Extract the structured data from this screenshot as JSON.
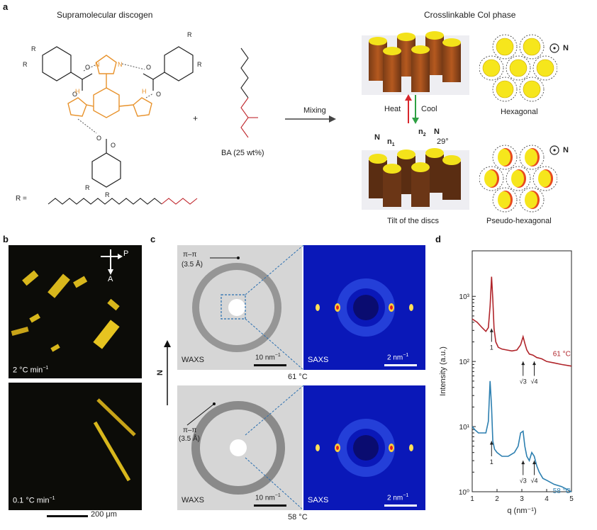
{
  "panels": {
    "a": {
      "letter": "a",
      "title_left": "Supramolecular discogen",
      "title_right": "Crosslinkable Col phase",
      "plus": "+",
      "ba_label": "BA (25 wt%)",
      "mixing": "Mixing",
      "heat": "Heat",
      "cool": "Cool",
      "hexagonal": "Hexagonal",
      "pseudo_hexagonal": "Pseudo-hexagonal",
      "tilt_label": "Tilt of the discs",
      "r_def": "R =",
      "director_n": "N",
      "n1": "n",
      "n1_sub": "1",
      "n2": "n",
      "n2_sub": "2",
      "tilt_angle": "29°",
      "r_letter": "R",
      "atom_o": "O",
      "atom_h": "H",
      "atom_n": "N"
    },
    "b": {
      "letter": "b",
      "cap_top": "2 °C min",
      "cap_bottom": "0.1 °C min",
      "superscript": "−1",
      "polarizer": "P",
      "analyzer": "A",
      "scale": "200 μm"
    },
    "c": {
      "letter": "c",
      "n_axis": "N",
      "pi_pi": "π–π",
      "spacing": "(3.5 Å)",
      "waxs": "WAXS",
      "saxs": "SAXS",
      "scale_waxs": "10 nm",
      "scale_saxs": "2 nm",
      "scale_sup": "−1",
      "temp_top": "61 °C",
      "temp_bottom": "58 °C"
    },
    "d": {
      "letter": "d"
    }
  },
  "chart_data": {
    "type": "line",
    "xlabel": "q (nm⁻¹)",
    "ylabel": "Intensity (a.u.)",
    "xlim": [
      1,
      5
    ],
    "ylim": [
      1,
      5000
    ],
    "y_scale": "log",
    "x_ticks": [
      "1",
      "2",
      "3",
      "4",
      "5"
    ],
    "y_ticks": [
      "10⁰",
      "10¹",
      "10²",
      "10³"
    ],
    "series": [
      {
        "name": "61 °C",
        "color": "#b0242a",
        "x": [
          1.0,
          1.2,
          1.4,
          1.55,
          1.65,
          1.72,
          1.78,
          1.83,
          1.88,
          1.95,
          2.05,
          2.2,
          2.4,
          2.6,
          2.8,
          2.95,
          3.05,
          3.12,
          3.2,
          3.3,
          3.45,
          3.6,
          3.8,
          4.0,
          4.3,
          4.6,
          5.0
        ],
        "y": [
          450,
          400,
          330,
          290,
          330,
          700,
          2000,
          900,
          320,
          200,
          165,
          155,
          150,
          145,
          150,
          180,
          240,
          190,
          150,
          130,
          125,
          115,
          110,
          100,
          95,
          90,
          85
        ]
      },
      {
        "name": "58 °C",
        "color": "#2c7fb0",
        "x": [
          1.0,
          1.1,
          1.25,
          1.4,
          1.55,
          1.65,
          1.72,
          1.78,
          1.83,
          1.9,
          2.0,
          2.2,
          2.45,
          2.7,
          2.85,
          2.95,
          3.05,
          3.12,
          3.2,
          3.3,
          3.4,
          3.5,
          3.6,
          3.7,
          3.85,
          4.0,
          4.3,
          4.6,
          5.0
        ],
        "y": [
          10,
          9,
          8,
          8,
          8,
          12,
          50,
          20,
          6,
          4.5,
          4,
          3.5,
          3.5,
          4,
          5,
          8,
          8.5,
          5,
          3.5,
          3,
          4,
          3.5,
          2.5,
          2,
          1.6,
          1.5,
          1.3,
          1.2,
          1.0
        ]
      }
    ],
    "annotations_61": [
      "1",
      "√3",
      "√4"
    ],
    "annotations_58": [
      "1",
      "√3",
      "√4"
    ]
  }
}
